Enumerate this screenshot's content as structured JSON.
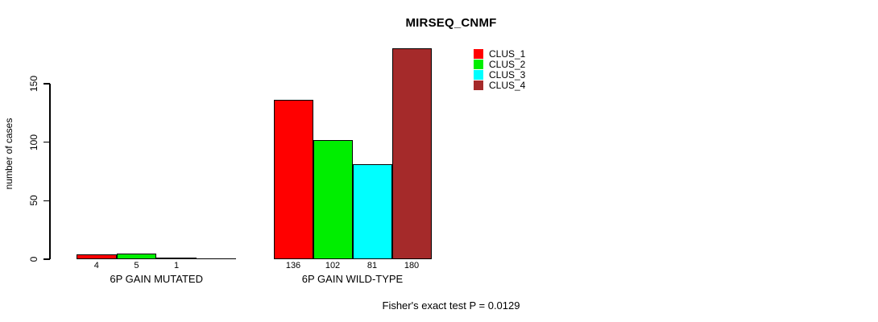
{
  "title": "MIRSEQ_CNMF",
  "footer": "Fisher's exact test P = 0.0129",
  "colors": {
    "background": "#ffffff",
    "axis": "#000000",
    "bar_border": "#000000"
  },
  "chart_data": {
    "type": "bar",
    "title": "MIRSEQ_CNMF",
    "xlabel": "",
    "ylabel": "number of cases",
    "categories": [
      "6P GAIN MUTATED",
      "6P GAIN WILD-TYPE"
    ],
    "series": [
      {
        "name": "CLUS_1",
        "color": "#ff0000",
        "values": [
          4,
          136
        ]
      },
      {
        "name": "CLUS_2",
        "color": "#00ee00",
        "values": [
          5,
          102
        ]
      },
      {
        "name": "CLUS_3",
        "color": "#00ffff",
        "values": [
          1,
          81
        ]
      },
      {
        "name": "CLUS_4",
        "color": "#a52a2a",
        "values": [
          0,
          180
        ]
      }
    ],
    "bar_labels": [
      [
        "4",
        "5",
        "1",
        ""
      ],
      [
        "136",
        "102",
        "81",
        "180"
      ]
    ],
    "yticks": [
      "0",
      "50",
      "100",
      "150"
    ],
    "ytick_values": [
      0,
      50,
      100,
      150
    ],
    "ylim": [
      0,
      180
    ],
    "grid": false,
    "legend_position": "top-right",
    "legend_entries": [
      "CLUS_1",
      "CLUS_2",
      "CLUS_3",
      "CLUS_4"
    ],
    "annotation": "Fisher's exact test P = 0.0129"
  }
}
